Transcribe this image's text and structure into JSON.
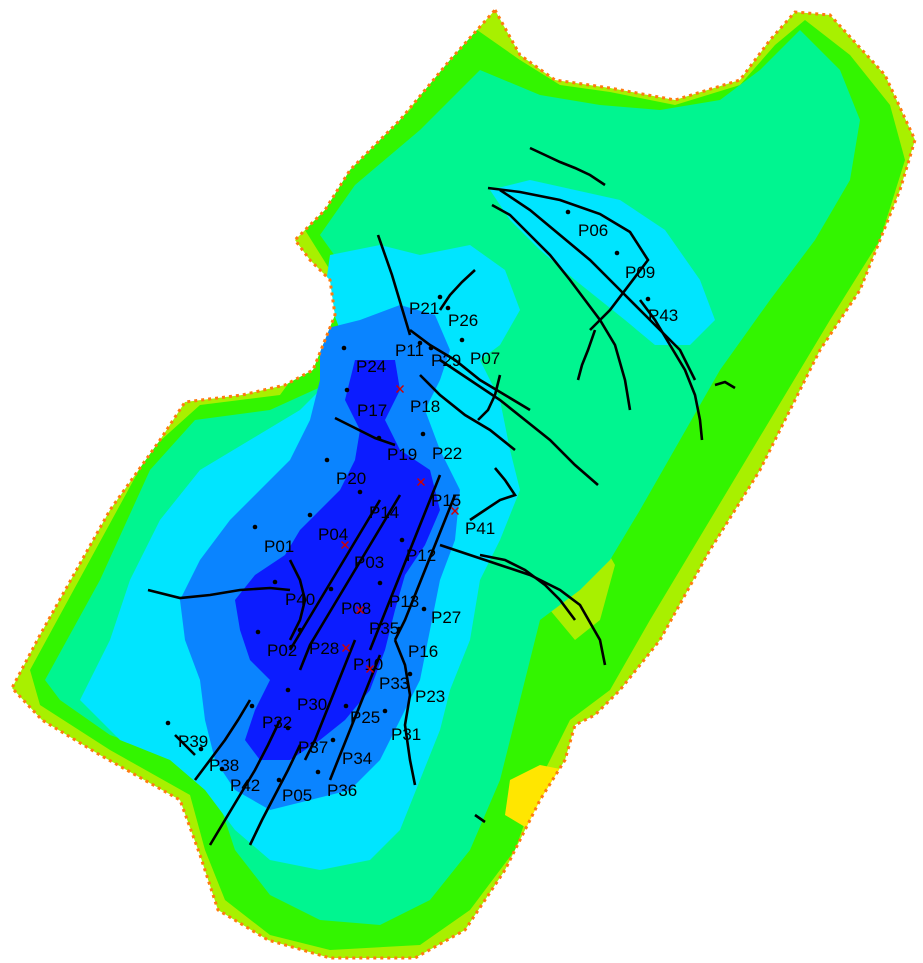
{
  "map": {
    "palette": {
      "yellow": "#ffe600",
      "orange": "#ff7a10",
      "yellow_green": "#a8f000",
      "green": "#33f500",
      "sea_green": "#00f590",
      "cyan": "#00e5ff",
      "azure": "#0a84ff",
      "deep_blue": "#0c1cff",
      "background": "#ffffff",
      "fault_line": "#000000",
      "injector_marker": "#d00000"
    },
    "wells": [
      {
        "name": "P06",
        "marker": "dot"
      },
      {
        "name": "P09",
        "marker": "dot"
      },
      {
        "name": "P43",
        "marker": "dot"
      },
      {
        "name": "P21",
        "marker": "dot"
      },
      {
        "name": "P26",
        "marker": "dot"
      },
      {
        "name": "P11",
        "marker": "dot"
      },
      {
        "name": "P29",
        "marker": "dot"
      },
      {
        "name": "P07",
        "marker": "dot"
      },
      {
        "name": "P24",
        "marker": "dot"
      },
      {
        "name": "P17",
        "marker": "dot"
      },
      {
        "name": "P18",
        "marker": "x"
      },
      {
        "name": "P19",
        "marker": "dot"
      },
      {
        "name": "P22",
        "marker": "dot"
      },
      {
        "name": "P20",
        "marker": "dot"
      },
      {
        "name": "P15",
        "marker": "x"
      },
      {
        "name": "P14",
        "marker": "dot"
      },
      {
        "name": "P41",
        "marker": "x"
      },
      {
        "name": "P01",
        "marker": "dot"
      },
      {
        "name": "P04",
        "marker": "dot"
      },
      {
        "name": "P03",
        "marker": "x"
      },
      {
        "name": "P12",
        "marker": "dot"
      },
      {
        "name": "P40",
        "marker": "dot"
      },
      {
        "name": "P08",
        "marker": "dot"
      },
      {
        "name": "P13",
        "marker": "dot"
      },
      {
        "name": "P27",
        "marker": "dot"
      },
      {
        "name": "P35",
        "marker": "x"
      },
      {
        "name": "P02",
        "marker": "dot"
      },
      {
        "name": "P28",
        "marker": "dot"
      },
      {
        "name": "P16",
        "marker": "dot"
      },
      {
        "name": "P10",
        "marker": "x"
      },
      {
        "name": "P33",
        "marker": "x"
      },
      {
        "name": "P23",
        "marker": "dot"
      },
      {
        "name": "P30",
        "marker": "dot"
      },
      {
        "name": "P32",
        "marker": "dot"
      },
      {
        "name": "P25",
        "marker": "dot"
      },
      {
        "name": "P31",
        "marker": "dot"
      },
      {
        "name": "P39",
        "marker": "dot"
      },
      {
        "name": "P37",
        "marker": "dot"
      },
      {
        "name": "P34",
        "marker": "dot"
      },
      {
        "name": "P38",
        "marker": "dot"
      },
      {
        "name": "P42",
        "marker": "dot"
      },
      {
        "name": "P05",
        "marker": "dot"
      },
      {
        "name": "P36",
        "marker": "dot"
      }
    ]
  }
}
